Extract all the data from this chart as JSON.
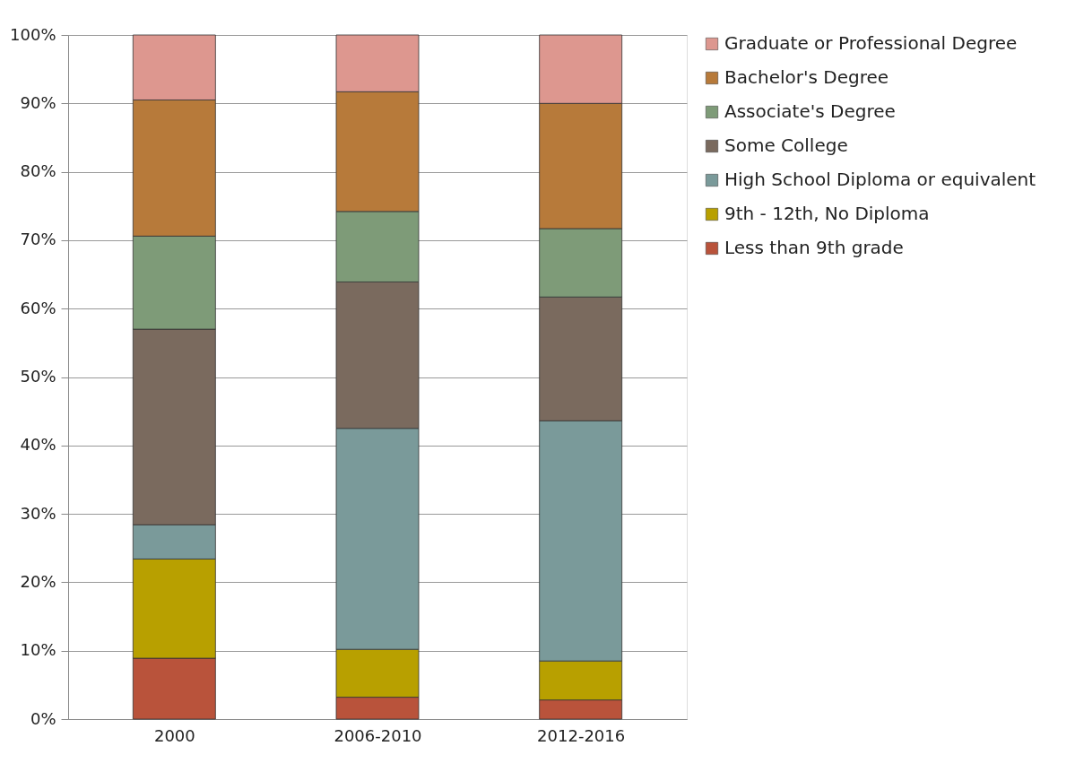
{
  "chart_data": {
    "type": "bar",
    "stacked": true,
    "categories": [
      "2000",
      "2006-2010",
      "2012-2016"
    ],
    "series": [
      {
        "name": "Less than 9th grade",
        "color": "#b9533b",
        "values": [
          8.9,
          3.2,
          2.8
        ]
      },
      {
        "name": "9th - 12th, No Diploma",
        "color": "#b8a000",
        "values": [
          14.5,
          7.0,
          5.7
        ]
      },
      {
        "name": "High School Diploma or equivalent",
        "color": "#7a9a9a",
        "values": [
          5.0,
          32.3,
          35.1
        ]
      },
      {
        "name": "Some College",
        "color": "#7a6a5e",
        "values": [
          28.6,
          21.4,
          18.1
        ]
      },
      {
        "name": "Associate's Degree",
        "color": "#7e9b78",
        "values": [
          13.6,
          10.3,
          10.0
        ]
      },
      {
        "name": "Bachelor's Degree",
        "color": "#b77a3a",
        "values": [
          19.9,
          17.5,
          18.3
        ]
      },
      {
        "name": "Graduate or Professional Degree",
        "color": "#dd978f",
        "values": [
          9.5,
          8.3,
          10.0
        ]
      }
    ],
    "ylim": [
      0,
      100
    ],
    "yticks": [
      {
        "value": 0,
        "label": "0%"
      },
      {
        "value": 10,
        "label": "10%"
      },
      {
        "value": 20,
        "label": "20%"
      },
      {
        "value": 30,
        "label": "30%"
      },
      {
        "value": 40,
        "label": "40%"
      },
      {
        "value": 50,
        "label": "50%"
      },
      {
        "value": 60,
        "label": "60%"
      },
      {
        "value": 70,
        "label": "70%"
      },
      {
        "value": 80,
        "label": "80%"
      },
      {
        "value": 90,
        "label": "90%"
      },
      {
        "value": 100,
        "label": "100%"
      }
    ],
    "grid": "y",
    "legend": "right"
  }
}
